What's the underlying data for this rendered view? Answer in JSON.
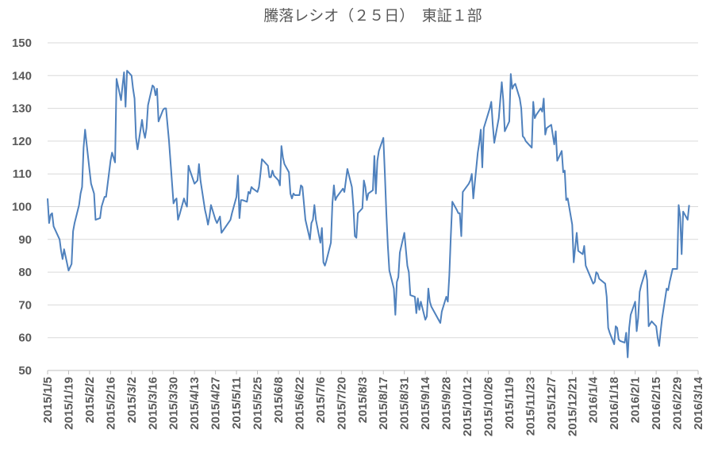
{
  "chart_data": {
    "type": "line",
    "title": "騰落レシオ（２５日）　東証１部",
    "x": [
      "2015/1/5",
      "2015/1/6",
      "2015/1/7",
      "2015/1/8",
      "2015/1/9",
      "2015/1/13",
      "2015/1/14",
      "2015/1/15",
      "2015/1/16",
      "2015/1/19",
      "2015/1/20",
      "2015/1/21",
      "2015/1/22",
      "2015/1/23",
      "2015/1/26",
      "2015/1/27",
      "2015/1/28",
      "2015/1/29",
      "2015/1/30",
      "2015/2/2",
      "2015/2/3",
      "2015/2/4",
      "2015/2/5",
      "2015/2/6",
      "2015/2/9",
      "2015/2/10",
      "2015/2/12",
      "2015/2/13",
      "2015/2/16",
      "2015/2/17",
      "2015/2/18",
      "2015/2/19",
      "2015/2/20",
      "2015/2/23",
      "2015/2/24",
      "2015/2/25",
      "2015/2/26",
      "2015/2/27",
      "2015/3/2",
      "2015/3/3",
      "2015/3/4",
      "2015/3/5",
      "2015/3/6",
      "2015/3/9",
      "2015/3/10",
      "2015/3/11",
      "2015/3/12",
      "2015/3/13",
      "2015/3/16",
      "2015/3/17",
      "2015/3/18",
      "2015/3/19",
      "2015/3/20",
      "2015/3/23",
      "2015/3/24",
      "2015/3/25",
      "2015/3/26",
      "2015/3/27",
      "2015/3/30",
      "2015/3/31",
      "2015/4/1",
      "2015/4/2",
      "2015/4/3",
      "2015/4/6",
      "2015/4/7",
      "2015/4/8",
      "2015/4/9",
      "2015/4/10",
      "2015/4/13",
      "2015/4/14",
      "2015/4/15",
      "2015/4/16",
      "2015/4/17",
      "2015/4/20",
      "2015/4/21",
      "2015/4/22",
      "2015/4/23",
      "2015/4/24",
      "2015/4/27",
      "2015/4/28",
      "2015/4/30",
      "2015/5/1",
      "2015/5/7",
      "2015/5/8",
      "2015/5/11",
      "2015/5/12",
      "2015/5/13",
      "2015/5/14",
      "2015/5/15",
      "2015/5/18",
      "2015/5/19",
      "2015/5/20",
      "2015/5/21",
      "2015/5/22",
      "2015/5/25",
      "2015/5/26",
      "2015/5/27",
      "2015/5/28",
      "2015/5/29",
      "2015/6/1",
      "2015/6/2",
      "2015/6/3",
      "2015/6/4",
      "2015/6/5",
      "2015/6/8",
      "2015/6/9",
      "2015/6/10",
      "2015/6/11",
      "2015/6/12",
      "2015/6/15",
      "2015/6/16",
      "2015/6/17",
      "2015/6/18",
      "2015/6/19",
      "2015/6/22",
      "2015/6/23",
      "2015/6/24",
      "2015/6/25",
      "2015/6/26",
      "2015/6/29",
      "2015/6/30",
      "2015/7/1",
      "2015/7/2",
      "2015/7/3",
      "2015/7/6",
      "2015/7/7",
      "2015/7/8",
      "2015/7/9",
      "2015/7/10",
      "2015/7/13",
      "2015/7/14",
      "2015/7/15",
      "2015/7/16",
      "2015/7/17",
      "2015/7/21",
      "2015/7/22",
      "2015/7/23",
      "2015/7/24",
      "2015/7/27",
      "2015/7/28",
      "2015/7/29",
      "2015/7/30",
      "2015/7/31",
      "2015/8/3",
      "2015/8/4",
      "2015/8/5",
      "2015/8/6",
      "2015/8/7",
      "2015/8/10",
      "2015/8/11",
      "2015/8/12",
      "2015/8/13",
      "2015/8/14",
      "2015/8/17",
      "2015/8/18",
      "2015/8/19",
      "2015/8/20",
      "2015/8/21",
      "2015/8/24",
      "2015/8/25",
      "2015/8/26",
      "2015/8/27",
      "2015/8/28",
      "2015/8/31",
      "2015/9/1",
      "2015/9/2",
      "2015/9/3",
      "2015/9/4",
      "2015/9/7",
      "2015/9/8",
      "2015/9/9",
      "2015/9/10",
      "2015/9/11",
      "2015/9/14",
      "2015/9/15",
      "2015/9/16",
      "2015/9/17",
      "2015/9/18",
      "2015/9/24",
      "2015/9/25",
      "2015/9/28",
      "2015/9/29",
      "2015/9/30",
      "2015/10/1",
      "2015/10/2",
      "2015/10/5",
      "2015/10/6",
      "2015/10/7",
      "2015/10/8",
      "2015/10/9",
      "2015/10/13",
      "2015/10/14",
      "2015/10/15",
      "2015/10/16",
      "2015/10/19",
      "2015/10/20",
      "2015/10/21",
      "2015/10/22",
      "2015/10/23",
      "2015/10/26",
      "2015/10/27",
      "2015/10/28",
      "2015/10/29",
      "2015/10/30",
      "2015/11/2",
      "2015/11/4",
      "2015/11/5",
      "2015/11/6",
      "2015/11/9",
      "2015/11/10",
      "2015/11/11",
      "2015/11/12",
      "2015/11/13",
      "2015/11/16",
      "2015/11/17",
      "2015/11/18",
      "2015/11/19",
      "2015/11/20",
      "2015/11/24",
      "2015/11/25",
      "2015/11/26",
      "2015/11/27",
      "2015/11/30",
      "2015/12/1",
      "2015/12/2",
      "2015/12/3",
      "2015/12/4",
      "2015/12/7",
      "2015/12/8",
      "2015/12/9",
      "2015/12/10",
      "2015/12/11",
      "2015/12/14",
      "2015/12/15",
      "2015/12/16",
      "2015/12/17",
      "2015/12/18",
      "2015/12/21",
      "2015/12/22",
      "2015/12/24",
      "2015/12/25",
      "2015/12/28",
      "2015/12/29",
      "2015/12/30",
      "2016/1/4",
      "2016/1/5",
      "2016/1/6",
      "2016/1/7",
      "2016/1/8",
      "2016/1/12",
      "2016/1/13",
      "2016/1/14",
      "2016/1/15",
      "2016/1/18",
      "2016/1/19",
      "2016/1/20",
      "2016/1/21",
      "2016/1/22",
      "2016/1/25",
      "2016/1/26",
      "2016/1/27",
      "2016/1/28",
      "2016/1/29",
      "2016/2/1",
      "2016/2/2",
      "2016/2/3",
      "2016/2/4",
      "2016/2/5",
      "2016/2/8",
      "2016/2/9",
      "2016/2/10",
      "2016/2/12",
      "2016/2/15",
      "2016/2/16",
      "2016/2/17",
      "2016/2/18",
      "2016/2/19",
      "2016/2/22",
      "2016/2/23",
      "2016/2/24",
      "2016/2/25",
      "2016/2/26",
      "2016/2/29",
      "2016/3/1",
      "2016/3/2",
      "2016/3/3",
      "2016/3/4",
      "2016/3/7",
      "2016/3/8"
    ],
    "series": [
      {
        "color": "#4f81bd",
        "values": [
          102.5,
          95,
          97.5,
          98,
          94,
          90,
          86.5,
          84,
          87,
          80.5,
          81.5,
          82.5,
          92.5,
          95,
          100.5,
          104,
          106,
          118,
          123.5,
          111,
          107,
          105.5,
          104,
          96,
          96.5,
          100,
          103,
          103,
          114,
          116.5,
          115,
          113.5,
          139,
          132.5,
          137,
          141,
          130.5,
          141.5,
          140,
          136,
          133,
          121,
          117.5,
          126.5,
          123,
          121,
          124,
          131,
          137,
          136.5,
          134,
          136,
          126,
          129.5,
          130,
          130,
          125,
          120,
          101,
          102,
          102.5,
          96,
          97.5,
          102.5,
          101,
          100,
          112.5,
          111,
          107,
          107.5,
          108,
          113,
          108,
          99,
          97,
          94.5,
          97,
          100.5,
          96,
          95,
          97,
          92,
          96,
          98,
          103,
          109.5,
          96.5,
          102,
          102,
          101.5,
          104.5,
          104,
          106,
          105.5,
          104.5,
          106,
          110,
          114.5,
          114,
          112.5,
          109,
          109,
          111,
          109.5,
          108,
          106.5,
          118.5,
          115,
          113,
          110.5,
          104,
          102.5,
          104,
          103.5,
          103.5,
          106.5,
          106,
          101,
          96,
          90,
          95,
          96,
          100.5,
          96,
          89,
          93.5,
          83,
          82,
          83.5,
          89,
          101,
          106.5,
          102,
          103,
          105.5,
          104.5,
          108,
          111.5,
          106,
          100,
          91,
          90.5,
          98,
          99.5,
          108,
          106,
          102,
          104,
          105,
          115.5,
          104,
          114,
          117,
          121,
          110,
          98,
          88,
          80.5,
          75,
          67,
          77,
          78.5,
          86,
          92,
          87,
          82,
          80,
          73,
          72.5,
          67.5,
          72,
          68.5,
          71,
          65.5,
          66.5,
          75,
          71,
          69.5,
          64.5,
          68,
          72.5,
          71,
          79,
          91,
          101.5,
          99,
          98,
          98,
          91,
          104.5,
          107,
          108,
          110,
          102.5,
          116.5,
          119.5,
          123.5,
          112,
          124,
          128.5,
          130,
          132,
          125,
          119.5,
          127,
          138,
          132.5,
          123,
          126,
          140.5,
          136,
          137,
          137.5,
          133,
          130,
          121.5,
          121,
          120,
          118,
          132,
          127,
          128,
          130,
          129,
          133,
          122,
          124,
          125,
          122,
          119,
          123,
          114,
          117,
          110.5,
          111,
          102,
          102.5,
          94.5,
          83,
          92,
          86.5,
          85.5,
          88,
          82,
          76.5,
          77,
          80,
          79.5,
          78,
          76.5,
          72.5,
          63,
          61.5,
          58,
          63.5,
          63,
          59.5,
          59,
          58.5,
          61.5,
          54,
          63,
          67,
          71,
          62,
          66,
          74,
          76,
          80.5,
          77.5,
          63.5,
          65,
          63.5,
          60,
          57.5,
          62,
          66,
          75,
          74.5,
          77,
          79,
          81,
          81,
          100.5,
          97,
          85.5,
          98.5,
          96,
          100.5
        ]
      }
    ],
    "xlim": [
      "2015/1/5",
      "2016/3/14"
    ],
    "xticks": [
      "2015/1/5",
      "2015/1/19",
      "2015/2/2",
      "2015/2/16",
      "2015/3/2",
      "2015/3/16",
      "2015/3/30",
      "2015/4/13",
      "2015/4/27",
      "2015/5/11",
      "2015/5/25",
      "2015/6/8",
      "2015/6/22",
      "2015/7/6",
      "2015/7/20",
      "2015/8/3",
      "2015/8/17",
      "2015/8/31",
      "2015/9/14",
      "2015/9/28",
      "2015/10/12",
      "2015/10/26",
      "2015/11/9",
      "2015/11/23",
      "2015/12/7",
      "2015/12/21",
      "2016/1/4",
      "2016/1/18",
      "2016/2/1",
      "2016/2/15",
      "2016/2/29",
      "2016/3/14"
    ],
    "ylim": [
      50,
      150
    ],
    "yticks": [
      50,
      60,
      70,
      80,
      90,
      100,
      110,
      120,
      130,
      140,
      150
    ],
    "grid": true
  }
}
